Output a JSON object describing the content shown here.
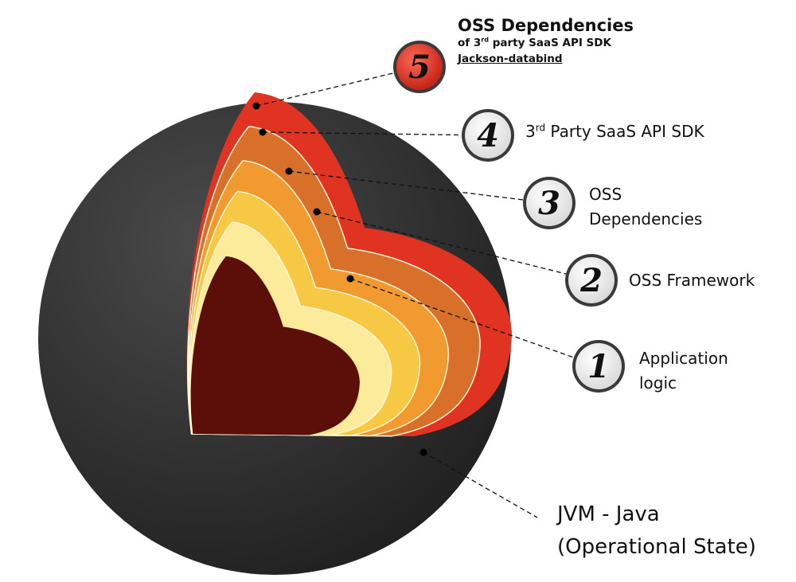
{
  "layers": [
    {
      "number": "1",
      "lines": [
        "Application",
        "logic"
      ]
    },
    {
      "number": "2",
      "lines": [
        "OSS Framework"
      ]
    },
    {
      "number": "3",
      "lines": [
        "OSS",
        "Dependencies"
      ]
    },
    {
      "number": "4",
      "pre": "3",
      "sup": "rd",
      "post": " Party SaaS API SDK"
    },
    {
      "number": "5",
      "title": "OSS Dependencies",
      "sub_pre": "of 3",
      "sub_sup": "rd",
      "sub_post": " party SaaS API SDK",
      "link": "Jackson-databind"
    }
  ],
  "outer": {
    "lines": [
      "JVM - Java",
      "(Operational State)"
    ]
  },
  "colors": {
    "sphere": "#333333",
    "layer5": "#e03322",
    "layer4": "#d9702a",
    "layer3": "#f09a30",
    "layer2": "#f6c843",
    "layer1_ring": "#fdeb9c",
    "core": "#5c0f08",
    "badge5": "#d8271b",
    "badge": "#ffffff"
  }
}
